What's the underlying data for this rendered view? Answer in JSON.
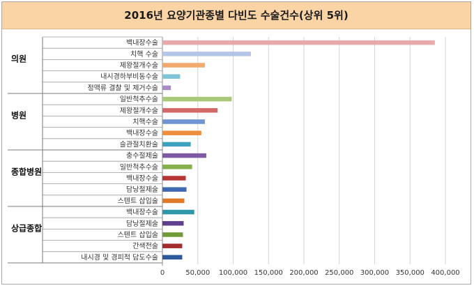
{
  "chart_data": {
    "type": "bar",
    "orientation": "horizontal",
    "title": "2016년 요양기관종별 다빈도 수술건수(상위 5위)",
    "xlabel": "",
    "ylabel": "",
    "xlim": [
      0,
      400000
    ],
    "x_ticks": [
      "0",
      "50,000",
      "100,000",
      "150,000",
      "200,000",
      "250,000",
      "300,000",
      "350,000",
      "400,000"
    ],
    "grid": true,
    "legend": "none",
    "groups": [
      {
        "name": "의원",
        "items": [
          {
            "label": "백내장수술",
            "value": 385000,
            "color": "#e7a9a9"
          },
          {
            "label": "치핵 수술",
            "value": 125000,
            "color": "#b5c5e8"
          },
          {
            "label": "제왕절개수술",
            "value": 60000,
            "color": "#f2a96e"
          },
          {
            "label": "내시경하부비동수술",
            "value": 25000,
            "color": "#7fc3d6"
          },
          {
            "label": "정맥류 결찰 및 제거수술",
            "value": 12000,
            "color": "#a98bc6"
          }
        ]
      },
      {
        "name": "병원",
        "items": [
          {
            "label": "일반척추수술",
            "value": 98000,
            "color": "#a8c97a"
          },
          {
            "label": "제왕절개수술",
            "value": 78000,
            "color": "#d36a6a"
          },
          {
            "label": "치핵수술",
            "value": 60000,
            "color": "#6f94d2"
          },
          {
            "label": "백내장수술",
            "value": 55000,
            "color": "#ee8d3e"
          },
          {
            "label": "슬관절치환술",
            "value": 40000,
            "color": "#3da2bd"
          }
        ]
      },
      {
        "name": "종합병원",
        "items": [
          {
            "label": "충수절제술",
            "value": 62000,
            "color": "#7d5aa3"
          },
          {
            "label": "일반척추수술",
            "value": 42000,
            "color": "#86b04a"
          },
          {
            "label": "백내장수술",
            "value": 33000,
            "color": "#b63535"
          },
          {
            "label": "담낭절제술",
            "value": 34000,
            "color": "#3f69b0"
          },
          {
            "label": "스텐트 삽입술",
            "value": 31000,
            "color": "#de7a2a"
          }
        ]
      },
      {
        "name": "상급종합",
        "items": [
          {
            "label": "백내장수술",
            "value": 45000,
            "color": "#2e97a8"
          },
          {
            "label": "담낭절제술",
            "value": 30000,
            "color": "#5e3f8c"
          },
          {
            "label": "스텐트 삽입술",
            "value": 29000,
            "color": "#6f9a35"
          },
          {
            "label": "간색전술",
            "value": 28000,
            "color": "#a32c2c"
          },
          {
            "label": "내시경 및 경피적 담도수술",
            "value": 28000,
            "color": "#2d5a9a"
          }
        ]
      }
    ]
  }
}
